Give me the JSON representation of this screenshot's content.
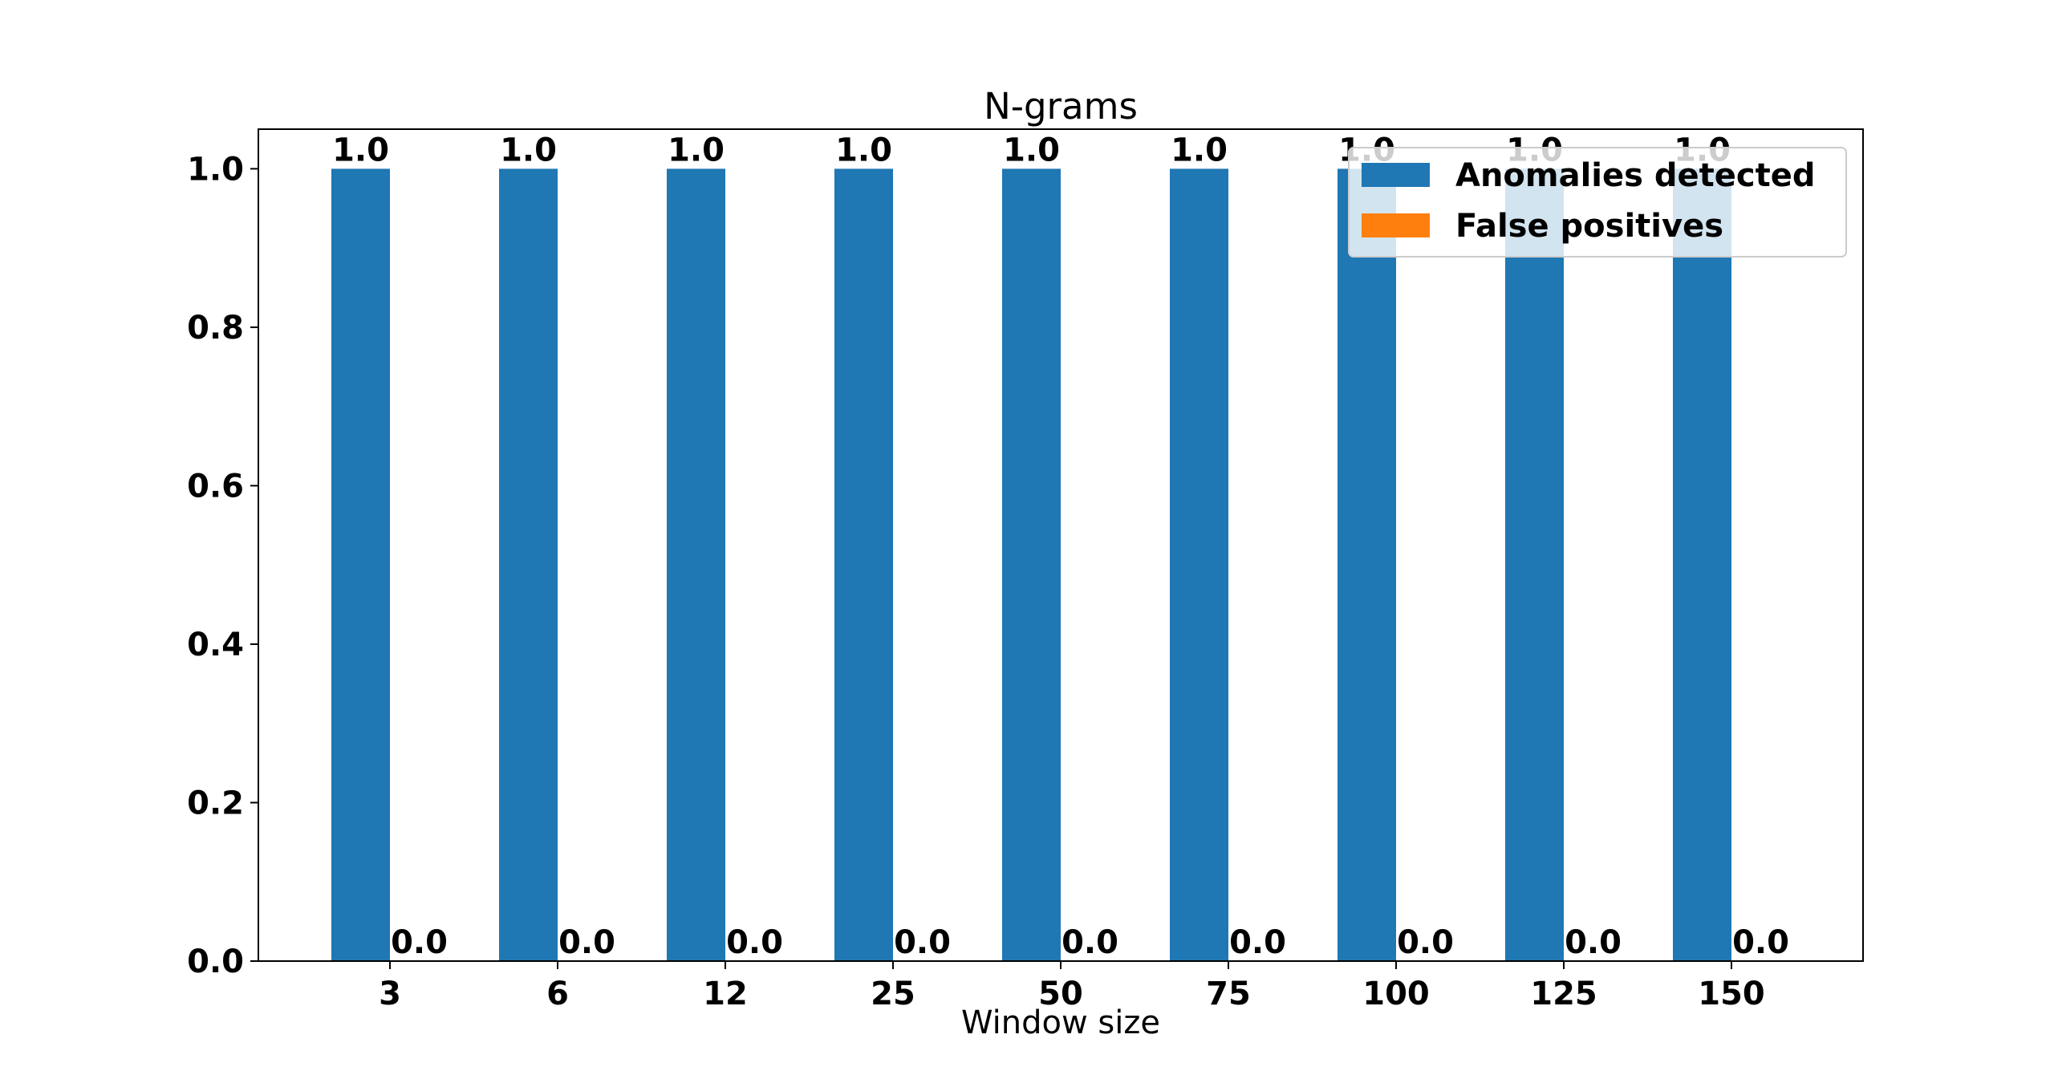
{
  "chart_data": {
    "type": "bar",
    "title": "N-grams",
    "xlabel": "Window size",
    "ylabel": "",
    "categories": [
      "3",
      "6",
      "12",
      "25",
      "50",
      "75",
      "100",
      "125",
      "150"
    ],
    "series": [
      {
        "name": "Anomalies detected",
        "color": "#1f77b4",
        "values": [
          1.0,
          1.0,
          1.0,
          1.0,
          1.0,
          1.0,
          1.0,
          1.0,
          1.0
        ],
        "labels": [
          "1.0",
          "1.0",
          "1.0",
          "1.0",
          "1.0",
          "1.0",
          "1.0",
          "1.0",
          "1.0"
        ]
      },
      {
        "name": "False positives",
        "color": "#ff7f0e",
        "values": [
          0.0,
          0.0,
          0.0,
          0.0,
          0.0,
          0.0,
          0.0,
          0.0,
          0.0
        ],
        "labels": [
          "0.0",
          "0.0",
          "0.0",
          "0.0",
          "0.0",
          "0.0",
          "0.0",
          "0.0",
          "0.0"
        ]
      }
    ],
    "ylim": [
      0,
      1.05
    ],
    "yticks": [
      "0.0",
      "0.2",
      "0.4",
      "0.6",
      "0.8",
      "1.0"
    ],
    "grid": false,
    "legend_position": "top-right"
  }
}
